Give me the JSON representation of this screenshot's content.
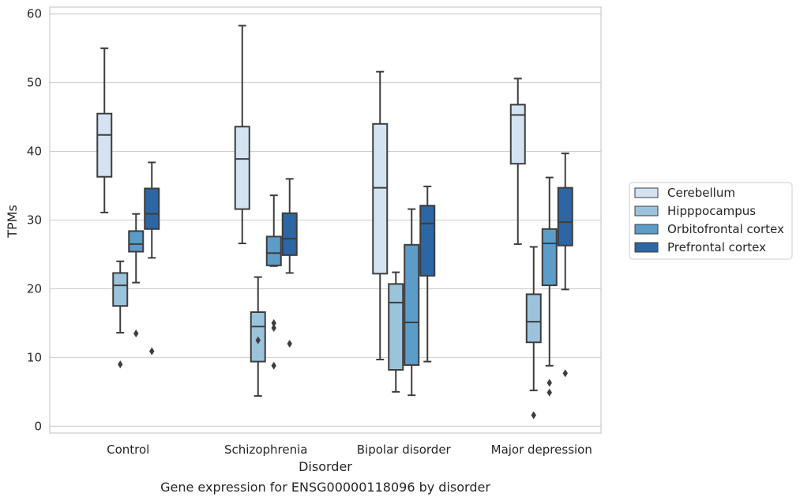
{
  "chart_data": {
    "type": "box",
    "title": "Gene expression for ENSG00000118096 by disorder",
    "xlabel": "Disorder",
    "ylabel": "TPMs",
    "ylim": [
      -1,
      61
    ],
    "yticks": [
      0,
      10,
      20,
      30,
      40,
      50,
      60
    ],
    "grid": "horizontal",
    "legend_position": "right",
    "categories": [
      "Control",
      "Schizophrenia",
      "Bipolar disorder",
      "Major depression"
    ],
    "series": [
      {
        "name": "Cerebellum",
        "color": "#d4e3f2",
        "boxes": [
          {
            "whislo": 31.1,
            "q1": 36.3,
            "med": 42.4,
            "q3": 45.5,
            "whishi": 55.0,
            "fliers": []
          },
          {
            "whislo": 26.6,
            "q1": 31.6,
            "med": 38.9,
            "q3": 43.6,
            "whishi": 58.3,
            "fliers": []
          },
          {
            "whislo": 9.7,
            "q1": 22.2,
            "med": 34.7,
            "q3": 44.0,
            "whishi": 51.6,
            "fliers": []
          },
          {
            "whislo": 26.5,
            "q1": 38.2,
            "med": 45.3,
            "q3": 46.8,
            "whishi": 50.6,
            "fliers": []
          }
        ]
      },
      {
        "name": "Hipppocampus",
        "color": "#9bc4dc",
        "boxes": [
          {
            "whislo": 13.6,
            "q1": 17.5,
            "med": 20.5,
            "q3": 22.3,
            "whishi": 24.0,
            "fliers": [
              9.0
            ]
          },
          {
            "whislo": 4.4,
            "q1": 9.4,
            "med": 14.5,
            "q3": 16.6,
            "whishi": 21.7,
            "fliers": [
              12.5
            ]
          },
          {
            "whislo": 5.0,
            "q1": 8.2,
            "med": 18.0,
            "q3": 20.7,
            "whishi": 22.4,
            "fliers": []
          },
          {
            "whislo": 5.2,
            "q1": 12.2,
            "med": 15.2,
            "q3": 19.2,
            "whishi": 26.1,
            "fliers": [
              1.6
            ]
          }
        ]
      },
      {
        "name": "Orbitofrontal cortex",
        "color": "#5c9cc8",
        "boxes": [
          {
            "whislo": 20.9,
            "q1": 25.4,
            "med": 26.5,
            "q3": 28.4,
            "whishi": 30.9,
            "fliers": [
              13.5
            ]
          },
          {
            "whislo": 23.3,
            "q1": 23.4,
            "med": 25.2,
            "q3": 27.6,
            "whishi": 33.6,
            "fliers": [
              15.0,
              14.3,
              8.8
            ]
          },
          {
            "whislo": 4.5,
            "q1": 8.9,
            "med": 15.1,
            "q3": 26.4,
            "whishi": 31.6,
            "fliers": []
          },
          {
            "whislo": 8.8,
            "q1": 20.5,
            "med": 26.6,
            "q3": 28.7,
            "whishi": 36.2,
            "fliers": [
              6.3,
              4.9
            ]
          }
        ]
      },
      {
        "name": "Prefrontal cortex",
        "color": "#2d66a4",
        "boxes": [
          {
            "whislo": 24.5,
            "q1": 28.7,
            "med": 30.9,
            "q3": 34.6,
            "whishi": 38.4,
            "fliers": [
              10.9
            ]
          },
          {
            "whislo": 22.3,
            "q1": 24.9,
            "med": 27.3,
            "q3": 31.0,
            "whishi": 36.0,
            "fliers": [
              12.0
            ]
          },
          {
            "whislo": 9.4,
            "q1": 21.9,
            "med": 29.5,
            "q3": 32.1,
            "whishi": 34.9,
            "fliers": []
          },
          {
            "whislo": 19.9,
            "q1": 26.3,
            "med": 29.7,
            "q3": 34.7,
            "whishi": 39.7,
            "fliers": [
              7.7
            ]
          }
        ]
      }
    ]
  }
}
